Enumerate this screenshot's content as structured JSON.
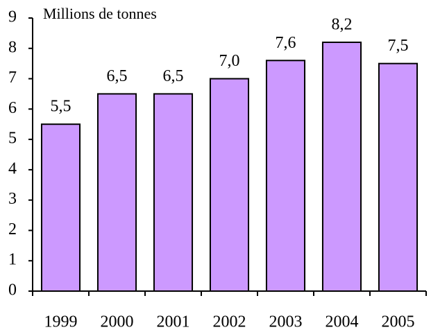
{
  "chart_data": {
    "type": "bar",
    "axis_label": "Millions de tonnes",
    "categories": [
      "1999",
      "2000",
      "2001",
      "2002",
      "2003",
      "2004",
      "2005"
    ],
    "values": [
      5.5,
      6.5,
      6.5,
      7.0,
      7.6,
      8.2,
      7.5
    ],
    "value_labels": [
      "5,5",
      "6,5",
      "6,5",
      "7,0",
      "7,6",
      "8,2",
      "7,5"
    ],
    "color": "#cc99ff",
    "ylim": [
      0,
      9
    ],
    "yticks": [
      0,
      1,
      2,
      3,
      4,
      5,
      6,
      7,
      8,
      9
    ],
    "grid": false
  }
}
